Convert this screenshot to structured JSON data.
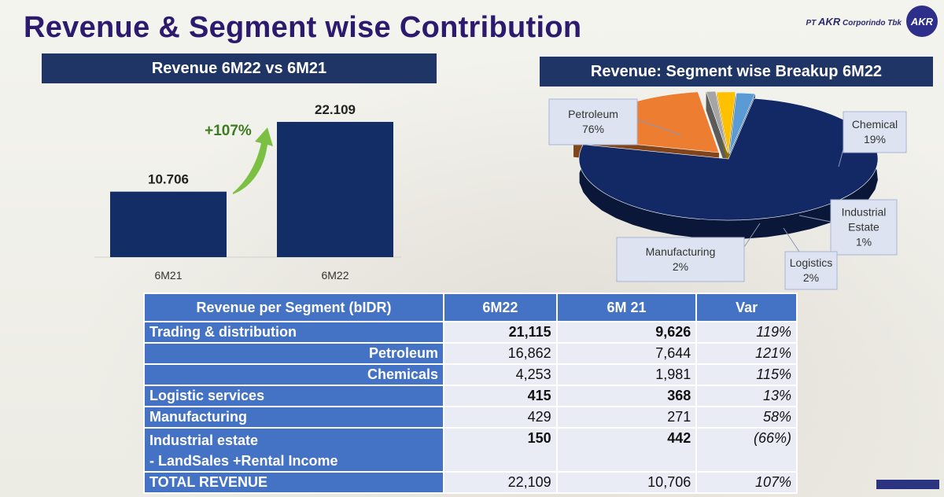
{
  "title": "Revenue & Segment wise Contribution",
  "brand": {
    "prefix": "PT",
    "name": "AKR",
    "suffix": "Corporindo Tbk",
    "logo_text": "AKR"
  },
  "left_banner": "Revenue 6M22 vs 6M21",
  "right_banner": "Revenue: Segment wise Breakup 6M22",
  "chart_data": [
    {
      "type": "bar",
      "title": "Revenue 6M22 vs 6M21",
      "categories": [
        "6M21",
        "6M22"
      ],
      "values": [
        10.706,
        22.109
      ],
      "value_labels": [
        "10.706",
        "22.109"
      ],
      "annotation": "+107%",
      "bar_color": "#132d66",
      "arrow_color": "#7cc043",
      "annotation_color": "#3e7a1f",
      "grid": false
    },
    {
      "type": "pie",
      "title": "Revenue: Segment wise Breakup 6M22",
      "labels": [
        "Petroleum",
        "Chemical",
        "Industrial Estate",
        "Logistics",
        "Manufacturing"
      ],
      "values": [
        76,
        19,
        1,
        2,
        2
      ],
      "label_texts": [
        [
          "Petroleum",
          "76%"
        ],
        [
          "Chemical",
          "19%"
        ],
        [
          "Industrial",
          "Estate",
          "1%"
        ],
        [
          "Logistics",
          "2%"
        ],
        [
          "Manufacturing",
          "2%"
        ]
      ],
      "colors": [
        "#132966",
        "#ed7d31",
        "#a5a5a5",
        "#ffc000",
        "#5b9bd5"
      ]
    }
  ],
  "table": {
    "headers": [
      "Revenue per Segment (bIDR)",
      "6M22",
      "6M 21",
      "Var"
    ],
    "rows": [
      {
        "label": "Trading & distribution",
        "v1": "21,115",
        "v2": "9,626",
        "var": "119%",
        "bold": true,
        "sub": false
      },
      {
        "label": "Petroleum",
        "v1": "16,862",
        "v2": "7,644",
        "var": "121%",
        "bold": false,
        "sub": true
      },
      {
        "label": "Chemicals",
        "v1": "4,253",
        "v2": "1,981",
        "var": "115%",
        "bold": false,
        "sub": true
      },
      {
        "label": "Logistic services",
        "v1": "415",
        "v2": "368",
        "var": "13%",
        "bold": true,
        "sub": false
      },
      {
        "label": "Manufacturing",
        "v1": "429",
        "v2": "271",
        "var": "58%",
        "bold": false,
        "sub": false
      },
      {
        "label": "Industrial estate",
        "label2": "- LandSales +Rental Income",
        "v1": "150",
        "v2": "442",
        "var": "(66%)",
        "bold": true,
        "sub": false
      },
      {
        "label": "TOTAL REVENUE",
        "v1": "22,109",
        "v2": "10,706",
        "var": "107%",
        "bold": false,
        "sub": false
      }
    ]
  }
}
